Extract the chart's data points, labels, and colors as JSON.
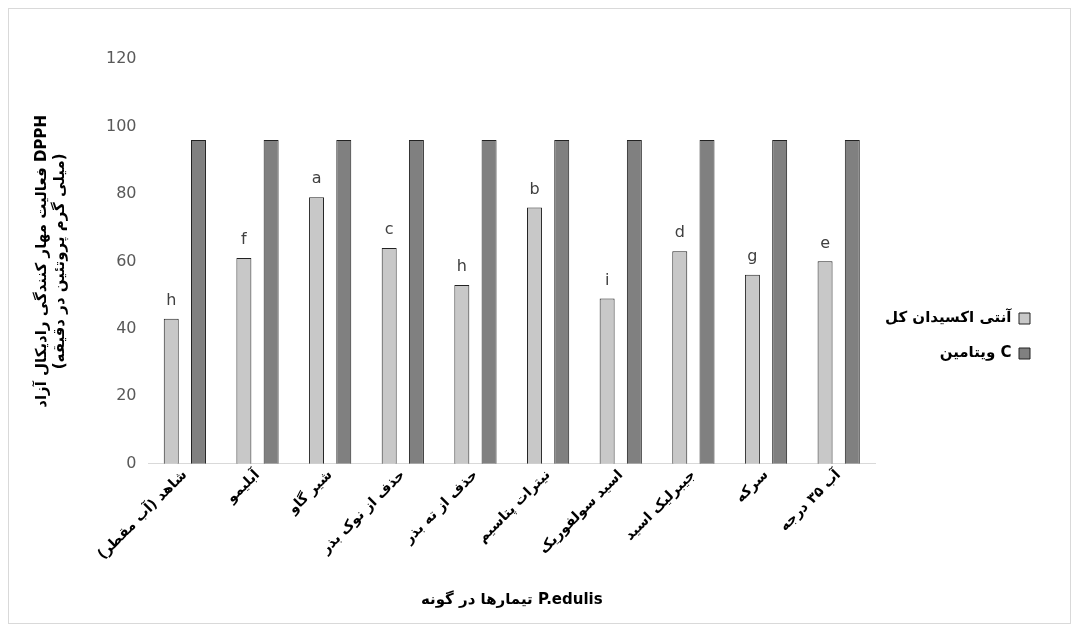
{
  "chart_data": {
    "type": "bar",
    "xlabel": "تیمارها در گونه P.edulis",
    "ylabel": "فعالیت مهار کنندگی رادیکال آزاد DPPH\n(میلی گرم پروتئین در دقیقه)",
    "categories": [
      "شاهد (آب مقطر)",
      "آبلیمو",
      "شیر گاو",
      "حذف از نوک بذر",
      "حذف از ته بذر",
      "نیترات پتاسیم",
      "اسید سولفوریک",
      "جیبرلیک اسید",
      "سرکه",
      "آب ۳۵ درجه"
    ],
    "series": [
      {
        "name": "آنتی اکسیدان کل",
        "color": "#c8c8c8",
        "values": [
          43,
          61,
          79,
          64,
          53,
          76,
          49,
          63,
          56,
          60
        ]
      },
      {
        "name": "ویتامین C",
        "color": "#808080",
        "values": [
          96,
          96,
          96,
          96,
          96,
          96,
          96,
          96,
          96,
          96
        ]
      }
    ],
    "annotations": [
      "h",
      "f",
      "a",
      "c",
      "h",
      "b",
      "i",
      "d",
      "g",
      "e"
    ],
    "ylim": [
      0,
      120
    ],
    "yticks": [
      0,
      20,
      40,
      60,
      80,
      100,
      120
    ],
    "grid": false,
    "legend": "right"
  }
}
